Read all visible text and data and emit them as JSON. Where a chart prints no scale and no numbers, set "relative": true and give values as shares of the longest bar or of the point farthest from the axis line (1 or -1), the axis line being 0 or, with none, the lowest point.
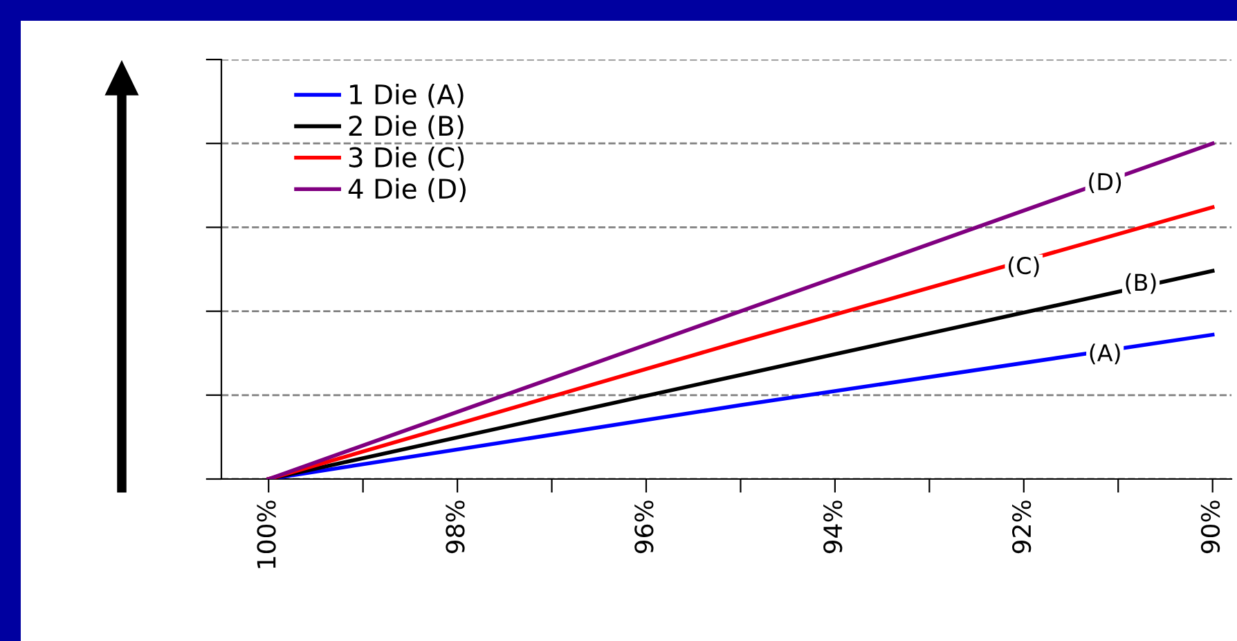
{
  "chart_data": {
    "type": "line",
    "relative": true,
    "series": [
      {
        "name": "1 Die (A)",
        "color": "#0000ff",
        "x": [
          100,
          95,
          90
        ],
        "values": [
          0,
          0.22,
          0.43
        ]
      },
      {
        "name": "2 Die (B)",
        "color": "#000000",
        "x": [
          100,
          95,
          90
        ],
        "values": [
          0,
          0.31,
          0.62
        ]
      },
      {
        "name": "3 Die (C)",
        "color": "#ff0000",
        "x": [
          100,
          95,
          90
        ],
        "values": [
          0,
          0.41,
          0.81
        ]
      },
      {
        "name": "4 Die (D)",
        "color": "#800080",
        "x": [
          100,
          95,
          90
        ],
        "values": [
          0,
          0.5,
          1.0
        ]
      }
    ],
    "xlim": [
      100.5,
      89.8
    ],
    "xticks": [
      {
        "value": 100,
        "label": "100%"
      },
      {
        "value": 99,
        "label": null
      },
      {
        "value": 98,
        "label": "98%"
      },
      {
        "value": 97,
        "label": null
      },
      {
        "value": 96,
        "label": "96%"
      },
      {
        "value": 95,
        "label": null
      },
      {
        "value": 94,
        "label": "94%"
      },
      {
        "value": 93,
        "label": null
      },
      {
        "value": 92,
        "label": "92%"
      },
      {
        "value": 91,
        "label": null
      },
      {
        "value": 90,
        "label": "90%"
      }
    ],
    "annotations": [
      {
        "text": "(A)",
        "x": 91.14,
        "y": 0.37
      },
      {
        "text": "(B)",
        "x": 90.76,
        "y": 0.58
      },
      {
        "text": "(C)",
        "x": 92.0,
        "y": 0.63
      },
      {
        "text": "(D)",
        "x": 91.14,
        "y": 0.88
      }
    ],
    "grid": "y",
    "legend": "top left",
    "tick_labels": "x",
    "line_style": "solid",
    "marker": "none"
  }
}
